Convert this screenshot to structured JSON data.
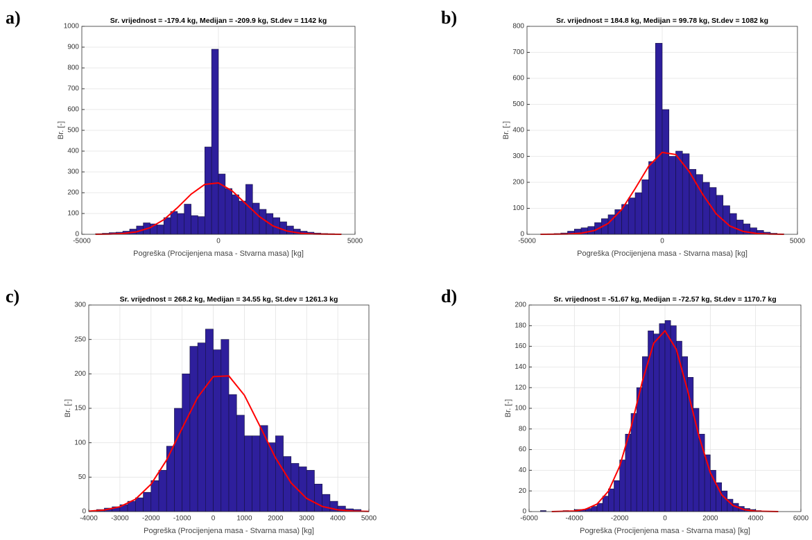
{
  "chart_data": [
    {
      "type": "histogram",
      "panel": "a)",
      "title": "Sr. vrijednost = -179.4 kg, Medijan = -209.9 kg, St.dev = 1142 kg",
      "xlabel": "Pogreška (Procijenjena masa - Stvarna masa) [kg]",
      "ylabel": "Br. [-]",
      "bins": [
        -4500,
        -4250,
        -4000,
        -3750,
        -3500,
        -3250,
        -3000,
        -2750,
        -2500,
        -2250,
        -2000,
        -1750,
        -1500,
        -1250,
        -1000,
        -750,
        -500,
        -250,
        0,
        250,
        500,
        750,
        1000,
        1250,
        1500,
        1750,
        2000,
        2250,
        2500,
        2750,
        3000,
        3250,
        3500,
        3750,
        4000,
        4250,
        4500
      ],
      "values": [
        3,
        5,
        8,
        10,
        15,
        25,
        40,
        55,
        50,
        45,
        80,
        110,
        100,
        145,
        90,
        85,
        420,
        890,
        290,
        220,
        190,
        160,
        240,
        150,
        120,
        100,
        80,
        60,
        40,
        25,
        15,
        10,
        6,
        4,
        3,
        2
      ],
      "color": "#2e1f9c",
      "fit": {
        "x": [
          -4500,
          -4000,
          -3500,
          -3000,
          -2500,
          -2000,
          -1500,
          -1000,
          -500,
          0,
          500,
          1000,
          1500,
          2000,
          2500,
          3000,
          3500,
          4000,
          4500
        ],
        "values": [
          0.2,
          0.9,
          3.7,
          11.8,
          31.7,
          70.2,
          128,
          193,
          240,
          247,
          209,
          147,
          85,
          40,
          16,
          5.2,
          1.4,
          0.3,
          0.05
        ],
        "color": "#ff0000"
      },
      "xlim": [
        -5000,
        5000
      ],
      "xticks": [
        -5000,
        0,
        5000
      ],
      "ylim": [
        0,
        1000
      ],
      "yticks": [
        0,
        100,
        200,
        300,
        400,
        500,
        600,
        700,
        800,
        900,
        1000
      ],
      "grid": true
    },
    {
      "type": "histogram",
      "panel": "b)",
      "title": "Sr. vrijednost = 184.8 kg, Medijan = 99.78 kg, St.dev = 1082 kg",
      "xlabel": "Pogreška (Procijenjena masa - Stvarna masa) [kg]",
      "ylabel": "Br. [-]",
      "bins": [
        -4500,
        -4250,
        -4000,
        -3750,
        -3500,
        -3250,
        -3000,
        -2750,
        -2500,
        -2250,
        -2000,
        -1750,
        -1500,
        -1250,
        -1000,
        -750,
        -500,
        -250,
        0,
        250,
        500,
        750,
        1000,
        1250,
        1500,
        1750,
        2000,
        2250,
        2500,
        2750,
        3000,
        3250,
        3500,
        3750,
        4000,
        4250,
        4500
      ],
      "values": [
        1,
        2,
        3,
        5,
        12,
        20,
        25,
        30,
        45,
        60,
        75,
        95,
        115,
        140,
        160,
        210,
        280,
        735,
        480,
        300,
        320,
        310,
        250,
        230,
        200,
        180,
        150,
        110,
        80,
        55,
        40,
        25,
        15,
        8,
        4,
        2
      ],
      "color": "#2e1f9c",
      "fit": {
        "x": [
          -4500,
          -4000,
          -3500,
          -3000,
          -2500,
          -2000,
          -1500,
          -1000,
          -500,
          0,
          500,
          1000,
          1500,
          2000,
          2500,
          3000,
          3500,
          4000,
          4500
        ],
        "values": [
          0.03,
          0.2,
          1.0,
          4.2,
          14.7,
          41.7,
          95,
          176,
          262,
          315,
          307,
          241,
          153,
          78,
          32,
          10.9,
          2.9,
          0.6,
          0.1
        ],
        "color": "#ff0000"
      },
      "xlim": [
        -5000,
        5000
      ],
      "xticks": [
        -5000,
        0,
        5000
      ],
      "ylim": [
        0,
        800
      ],
      "yticks": [
        0,
        100,
        200,
        300,
        400,
        500,
        600,
        700,
        800
      ],
      "grid": true
    },
    {
      "type": "histogram",
      "panel": "c)",
      "title": "Sr. vrijednost = 268.2 kg, Medijan = 34.55 kg, St.dev = 1261.3 kg",
      "xlabel": "Pogreška (Procijenjena masa - Stvarna masa) [kg]",
      "ylabel": "Br. [-]",
      "bins": [
        -3750,
        -3500,
        -3250,
        -3000,
        -2750,
        -2500,
        -2250,
        -2000,
        -1750,
        -1500,
        -1250,
        -1000,
        -750,
        -500,
        -250,
        0,
        250,
        500,
        750,
        1000,
        1250,
        1500,
        1750,
        2000,
        2250,
        2500,
        2750,
        3000,
        3250,
        3500,
        3750,
        4000,
        4250,
        4500,
        4750
      ],
      "values": [
        3,
        5,
        7,
        10,
        15,
        20,
        28,
        45,
        60,
        95,
        150,
        200,
        240,
        245,
        265,
        235,
        250,
        170,
        140,
        110,
        110,
        125,
        100,
        110,
        80,
        70,
        65,
        60,
        40,
        25,
        15,
        8,
        4,
        3
      ],
      "color": "#2e1f9c",
      "fit": {
        "x": [
          -4000,
          -3500,
          -3000,
          -2500,
          -2000,
          -1500,
          -1000,
          -500,
          0,
          500,
          1000,
          1500,
          2000,
          2500,
          3000,
          3500,
          4000,
          4500,
          5000
        ],
        "values": [
          0.65,
          2.3,
          7.0,
          18.0,
          39.7,
          74.8,
          121,
          166,
          196,
          197,
          169,
          124,
          78,
          41.7,
          19.1,
          7.5,
          2.5,
          0.7,
          0.2
        ],
        "color": "#ff0000"
      },
      "xlim": [
        -4000,
        5000
      ],
      "xticks": [
        -4000,
        -3000,
        -2000,
        -1000,
        0,
        1000,
        2000,
        3000,
        4000,
        5000
      ],
      "ylim": [
        0,
        300
      ],
      "yticks": [
        0,
        50,
        100,
        150,
        200,
        250,
        300
      ],
      "grid": true
    },
    {
      "type": "histogram",
      "panel": "d)",
      "title": "Sr. vrijednost = -51.67 kg, Medijan = -72.57 kg, St.dev = 1170.7 kg",
      "xlabel": "Pogreška (Procijenjena masa - Stvarna masa) [kg]",
      "ylabel": "Br. [-]",
      "bins": [
        -5500,
        -5250,
        -5000,
        -4750,
        -4500,
        -4250,
        -4000,
        -3750,
        -3500,
        -3250,
        -3000,
        -2750,
        -2500,
        -2250,
        -2000,
        -1750,
        -1500,
        -1250,
        -1000,
        -750,
        -500,
        -250,
        0,
        250,
        500,
        750,
        1000,
        1250,
        1500,
        1750,
        2000,
        2250,
        2500,
        2750,
        3000,
        3250,
        3500,
        3750,
        4000,
        4250
      ],
      "values": [
        1,
        0,
        0,
        0,
        1,
        0,
        2,
        2,
        3,
        5,
        8,
        15,
        22,
        30,
        50,
        75,
        95,
        120,
        150,
        175,
        172,
        182,
        185,
        180,
        165,
        150,
        130,
        100,
        75,
        55,
        40,
        28,
        20,
        12,
        8,
        5,
        3,
        2,
        1
      ],
      "color": "#2e1f9c",
      "fit": {
        "x": [
          -5000,
          -4000,
          -3500,
          -3000,
          -2500,
          -2000,
          -1500,
          -1000,
          -500,
          0,
          500,
          1000,
          1500,
          2000,
          2500,
          3000,
          3500,
          4000,
          5000
        ],
        "values": [
          0.02,
          0.6,
          2.3,
          7.3,
          19.7,
          43.9,
          81.5,
          126,
          163,
          175,
          157,
          117,
          72.8,
          37.7,
          16.3,
          5.9,
          1.8,
          0.4,
          0.02
        ],
        "color": "#ff0000"
      },
      "xlim": [
        -6000,
        6000
      ],
      "xticks": [
        -6000,
        -4000,
        -2000,
        0,
        2000,
        4000,
        6000
      ],
      "ylim": [
        0,
        200
      ],
      "yticks": [
        0,
        20,
        40,
        60,
        80,
        100,
        120,
        140,
        160,
        180,
        200
      ],
      "grid": true
    }
  ]
}
